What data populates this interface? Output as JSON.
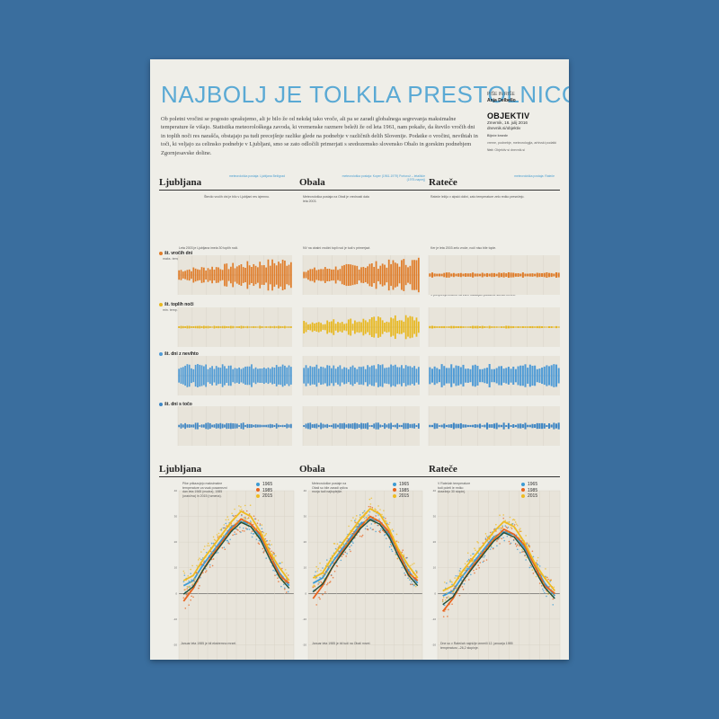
{
  "title": "NAJBOLJ JE TOLKLA PRESTOLNICO",
  "byline": {
    "label": "PIŠE IN RIŠE",
    "author": "Anja Delbello"
  },
  "intro": "Ob poletni vročini se pogosto sprašujemo, ali je bilo že od nekdaj tako vroče, ali pa se zaradi globalnega segrevanja maksimalne temperature še višajo. Statistika meteorološkega zavoda, ki vremenske razmere beleži že od leta 1961, nam pokaže, da število vročih dni in toplih noči res narašča, obstajajo pa tudi precejšnje razlike glede na podnebje v različnih delih Slovenije. Podatke o vročini, nevihtah in toči, ki veljajo za celinsko podnebje v Ljubljani, smo se zato odločili primerjati s sredozemsko slovensko Obalo in gorskim podnebjem Zgornjesavske doline.",
  "masthead": {
    "brand": "OBJEKTIV",
    "date": "Zmernik, 16. julij 2016",
    "site": "dnevnik.si/objektiv",
    "source_label": "Bijeće kmede",
    "source_text": "vreme, podnebje, meteorologija, arhivski podatki",
    "web_label": "Več:",
    "web_text": "Objektiv si dnevnik.si"
  },
  "cities": [
    {
      "name": "Ljubljana",
      "station": "meteorološka postaja: Ljubljana Bežigrad"
    },
    {
      "name": "Obala",
      "station": "meteorološka postaja: Koper (1961-1979) Portorož – letališče (1975-naprej)"
    },
    {
      "name": "Rateče",
      "station": "meteorološka postaja: Rateče"
    }
  ],
  "rows": [
    {
      "label": "št. vročih dni",
      "sub": "maks. temp. > 30 °C",
      "color": "#e07d2a"
    },
    {
      "label": "št. toplih noči",
      "sub": "min. temp. > 20 °C",
      "color": "#e8b820"
    },
    {
      "label": "št. dni z nevihto",
      "sub": "",
      "color": "#4f9bd6"
    },
    {
      "label": "št. dni s točo",
      "sub": "",
      "color": "#3d86c5"
    }
  ],
  "notes": {
    "hot_lj": "Število vročih dni je bilo v Ljubljani res izjemno.",
    "hot_ob": "Meteorološka postaja na Obali je vrednosti dala leta 2003.",
    "hot_ra": "Rateče ležijo v alpski dolini, zato temperature zelo redko presežejo.",
    "nights_lj": "Leta 2003 je Ljubljana imela 30 toplih noči.",
    "nights_ob": "NV na obalni vročini topli noč je tudi v primerjavi.",
    "nights_ra": "Ker je leta 2003 zelo vroče, noči niso bile tople.",
    "storm": "V povprečju imamo na vseh lokacijah podobno število neviht.",
    "hail_lj": "Toča je v Ljubljani najbolj pogosta v poletnih mesecih.",
    "hail_ob": "Na Obali je toča redkejša.",
    "hail_ra": "V Ratečah je toča redka.",
    "daily_lj": "Pike prikazujejo maksimalne temperature za vsak posamezni dan leta 1965 (modra), 1985 (oranžna) in 2015 (rumena).",
    "daily_ob": "Meteorološke postaje na Obali so bile zaradi vpliva morja tudi najtoplejše.",
    "daily_ra": "V Ratečah temperature tudi poleti le redko dosežejo 30 stopinj.",
    "cold_lj": "Januar leta 1985 je bil ekstremno mrzel.",
    "cold_ob": "Januar leta 1985 je bil tudi na Obali mrzel.",
    "cold_ra": "Dne so v Ratečah najnižje izmerili 12. januarja 1985 temperaturo –26,2 stopinje."
  },
  "legend_years": [
    "1965",
    "1985",
    "2015"
  ],
  "legend_colors": [
    "#3d9bd3",
    "#e8641e",
    "#eebb22"
  ],
  "months": [
    "JAN",
    "FEB",
    "MAR",
    "APR",
    "MAJ",
    "JUN",
    "JUL",
    "AVG",
    "SEP",
    "OKT",
    "NOV",
    "DEC"
  ],
  "chart_data": {
    "type": "line",
    "x": [
      "JAN",
      "FEB",
      "MAR",
      "APR",
      "MAJ",
      "JUN",
      "JUL",
      "AVG",
      "SEP",
      "OKT",
      "NOV",
      "DEC"
    ],
    "series": [
      {
        "name": "1965",
        "values": [
          3,
          5,
          11,
          16,
          21,
          26,
          28,
          27,
          22,
          15,
          8,
          3
        ]
      },
      {
        "name": "1985",
        "values": [
          -3,
          2,
          9,
          15,
          20,
          25,
          29,
          27,
          23,
          15,
          7,
          4
        ]
      },
      {
        "name": "2015",
        "values": [
          5,
          7,
          13,
          18,
          23,
          28,
          32,
          30,
          24,
          16,
          10,
          5
        ]
      }
    ]
  }
}
